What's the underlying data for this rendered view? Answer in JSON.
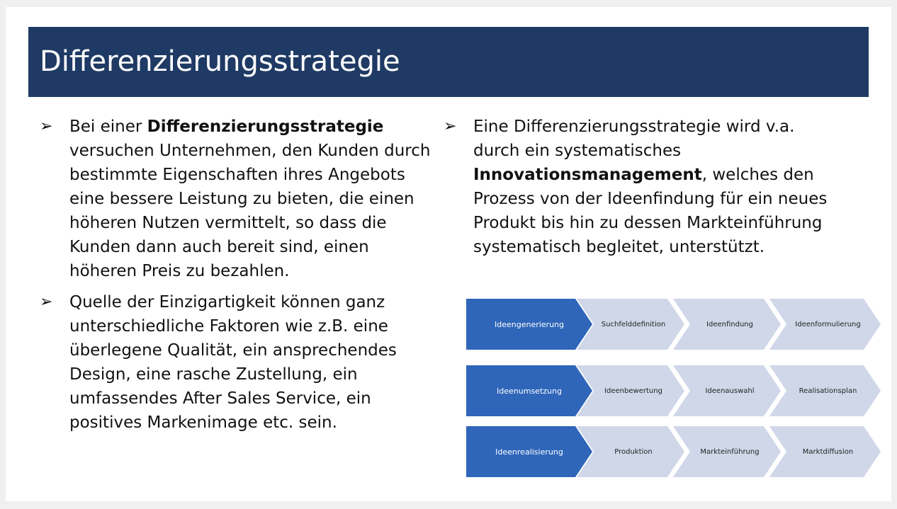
{
  "title": "Differenzierungsstrategie",
  "left_column": {
    "bullet1": {
      "pre": "Bei einer ",
      "bold": "Differenzierungsstrategie",
      "post": " versuchen Unternehmen, den Kunden durch bestimmte Eigenschaften ihres Angebots eine bessere Leistung zu bieten, die einen höheren Nutzen vermittelt, so dass die Kunden dann auch bereit sind, einen höheren Preis zu bezahlen."
    },
    "bullet2": {
      "text": "Quelle der Einzigartigkeit können ganz unterschiedliche Faktoren wie z.B. eine überlegene Qualität, ein ansprechendes Design, eine rasche Zustellung, ein umfassendes After Sales Service, ein positives Markenimage etc. sein."
    }
  },
  "right_column": {
    "bullet1": {
      "pre": "Eine Differenzierungsstrategie wird v.a. durch ein systematisches ",
      "bold": "Innovationsmanagement",
      "post": ", welches den Prozess von der Ideenfindung für ein neues Produkt bis hin zu dessen Markteinführung systematisch begleitet, unterstützt."
    }
  },
  "bullet_symbol": "➢",
  "process": [
    {
      "head": "Ideengenerierung",
      "steps": [
        "Suchfelddefinition",
        "Ideenfindung",
        "Ideenformulierung"
      ]
    },
    {
      "head": "Ideenumsetzung",
      "steps": [
        "Ideenbewertung",
        "Ideenauswahl",
        "Realisationsplan"
      ]
    },
    {
      "head": "Ideenrealisierung",
      "steps": [
        "Produktion",
        "Markteinführung",
        "Marktdiffusion"
      ]
    }
  ],
  "colors": {
    "title_bar": "#1f3a64",
    "head_chevron": "#2f66b9",
    "step_chevron": "#cfd7e8"
  }
}
